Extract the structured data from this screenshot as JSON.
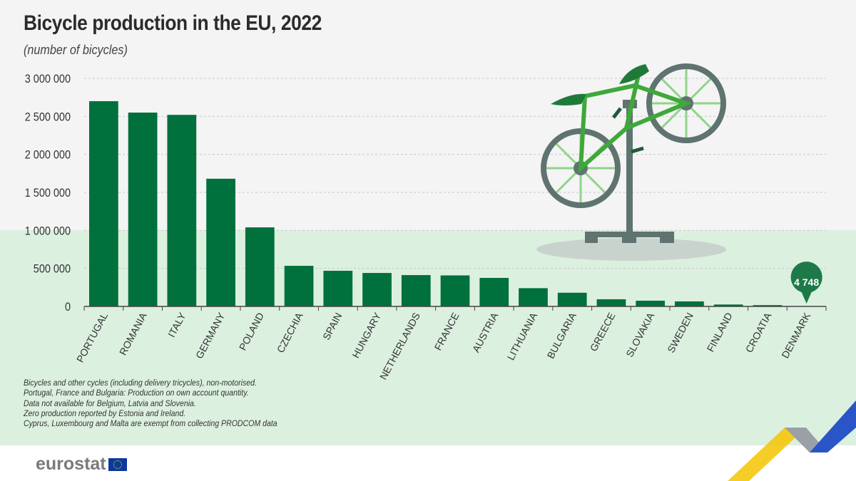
{
  "chart_data": {
    "type": "bar",
    "title": "Bicycle production in the EU, 2022",
    "subtitle": "(number of bicycles)",
    "categories": [
      "PORTUGAL",
      "ROMANIA",
      "ITALY",
      "GERMANY",
      "POLAND",
      "CZECHIA",
      "SPAIN",
      "HUNGARY",
      "NETHERLANDS",
      "FRANCE",
      "AUSTRIA",
      "LITHUANIA",
      "BULGARIA",
      "GREECE",
      "SLOVAKIA",
      "SWEDEN",
      "FINLAND",
      "CROATIA",
      "DENMARK"
    ],
    "values": [
      2700000,
      2550000,
      2520000,
      1680000,
      1040000,
      534000,
      469000,
      440000,
      412000,
      408000,
      375000,
      240000,
      180000,
      94000,
      75000,
      66000,
      25000,
      17000,
      4748
    ],
    "ylim": [
      0,
      3000000
    ],
    "yticks": [
      0,
      500000,
      1000000,
      1500000,
      2000000,
      2500000,
      3000000
    ],
    "ytick_labels": [
      "0",
      "500 000",
      "1 000 000",
      "1 500 000",
      "2 000 000",
      "2 500 000",
      "3 000 000"
    ],
    "grid": true,
    "annotations": [
      {
        "category": "DENMARK",
        "label": "4 748"
      }
    ],
    "bar_color": "#00703c"
  },
  "notes": [
    "Bicycles and other cycles (including delivery tricycles), non-motorised.",
    "Portugal, France and Bulgaria: Production on own account quantity.",
    "Data not available for Belgium, Latvia and Slovenia.",
    "Zero production reported by Estonia and Ireland.",
    "Cyprus, Luxembourg and Malta are exempt from collecting PRODCOM data"
  ],
  "logo": {
    "text": "eurostat"
  }
}
